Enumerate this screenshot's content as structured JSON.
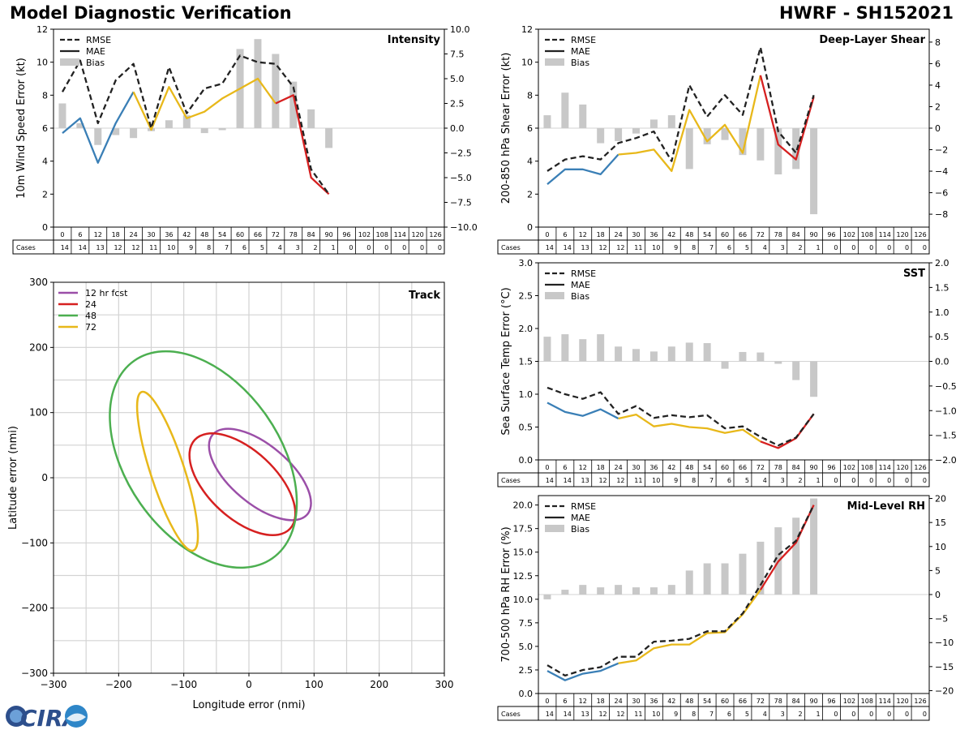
{
  "header": {
    "left_title": "Model Diagnostic Verification",
    "right_title": "HWRF - SH152021"
  },
  "logo": {
    "text": "CIRA"
  },
  "colors": {
    "rmse": "#222222",
    "mae_0_12": "#3a7fb6",
    "mae_12_36": "#e8b81a",
    "mae_36_plus": "#d62020",
    "bias": "#c8c8c8",
    "grid": "#d3d3d3"
  },
  "table": {
    "row_label": "Cases",
    "hours": [
      "0",
      "6",
      "12",
      "18",
      "24",
      "30",
      "36",
      "42",
      "48",
      "54",
      "60",
      "66",
      "72",
      "78",
      "84",
      "90",
      "96",
      "102",
      "108",
      "114",
      "120",
      "126"
    ],
    "cases": [
      "14",
      "14",
      "13",
      "12",
      "12",
      "11",
      "10",
      "9",
      "8",
      "7",
      "6",
      "5",
      "4",
      "3",
      "2",
      "1",
      "0",
      "0",
      "0",
      "0",
      "0",
      "0"
    ]
  },
  "legend": {
    "rmse": "RMSE",
    "mae": "MAE",
    "bias": "Bias"
  },
  "chart_data": [
    {
      "id": "intensity",
      "type": "line",
      "title": "Intensity",
      "ylabel": "10m Wind Speed Error (kt)",
      "ylim": [
        0,
        12
      ],
      "yticks": [
        "0",
        "2",
        "4",
        "6",
        "8",
        "10",
        "12"
      ],
      "y2lim": [
        -10,
        10
      ],
      "y2ticks": [
        "−10.0",
        "−7.5",
        "−5.0",
        "−2.5",
        "0.0",
        "2.5",
        "5.0",
        "7.5",
        "10.0"
      ],
      "rmse": [
        8.2,
        10.1,
        6.3,
        8.9,
        9.9,
        6.0,
        9.7,
        6.9,
        8.4,
        8.7,
        10.4,
        10.0,
        9.9,
        8.5,
        3.5,
        2.0
      ],
      "mae": [
        5.7,
        6.6,
        3.9,
        6.3,
        8.2,
        5.9,
        8.5,
        6.6,
        7.0,
        7.8,
        8.4,
        9.0,
        7.5,
        8.0,
        3.0,
        2.0
      ],
      "bias": [
        2.5,
        0.5,
        -1.7,
        -0.7,
        -1.0,
        -0.3,
        0.8,
        1.3,
        -0.5,
        -0.2,
        8.0,
        9.0,
        7.5,
        4.7,
        1.9,
        -2.0
      ]
    },
    {
      "id": "shear",
      "type": "line",
      "title": "Deep-Layer Shear",
      "ylabel": "200-850 hPa Shear Error (kt)",
      "ylim": [
        0,
        12
      ],
      "yticks": [
        "0",
        "2",
        "4",
        "6",
        "8",
        "10",
        "12"
      ],
      "y2lim": [
        -9.2,
        9.2
      ],
      "y2ticks": [
        "−8",
        "−6",
        "−4",
        "−2",
        "0",
        "2",
        "4",
        "6",
        "8"
      ],
      "rmse": [
        3.4,
        4.1,
        4.3,
        4.1,
        5.1,
        5.4,
        5.8,
        4.0,
        8.6,
        6.7,
        8.0,
        6.8,
        10.9,
        5.8,
        4.5,
        8.0
      ],
      "mae": [
        2.6,
        3.5,
        3.5,
        3.2,
        4.4,
        4.5,
        4.7,
        3.4,
        7.1,
        5.2,
        6.2,
        4.5,
        9.2,
        5.0,
        4.1,
        7.9
      ],
      "bias": [
        1.2,
        3.3,
        2.2,
        -1.4,
        -1.2,
        -0.5,
        0.8,
        1.2,
        -3.8,
        -1.5,
        -1.1,
        -2.5,
        -3.0,
        -4.3,
        -3.8,
        -8.0
      ]
    },
    {
      "id": "sst",
      "type": "line",
      "title": "SST",
      "ylabel": "Sea Surface Temp Error (°C)",
      "ylim": [
        0,
        3
      ],
      "yticks": [
        "0.0",
        "0.5",
        "1.0",
        "1.5",
        "2.0",
        "2.5",
        "3.0"
      ],
      "y2lim": [
        -2,
        2
      ],
      "y2ticks": [
        "−2.0",
        "−1.5",
        "−1.0",
        "−0.5",
        "0.0",
        "0.5",
        "1.0",
        "1.5",
        "2.0"
      ],
      "rmse": [
        1.1,
        1.0,
        0.93,
        1.03,
        0.7,
        0.82,
        0.64,
        0.68,
        0.65,
        0.68,
        0.48,
        0.51,
        0.35,
        0.22,
        0.34,
        0.7
      ],
      "mae": [
        0.87,
        0.73,
        0.67,
        0.77,
        0.63,
        0.69,
        0.51,
        0.55,
        0.5,
        0.48,
        0.41,
        0.46,
        0.28,
        0.18,
        0.33,
        0.7
      ],
      "bias": [
        0.5,
        0.55,
        0.45,
        0.55,
        0.3,
        0.25,
        0.2,
        0.3,
        0.38,
        0.37,
        -0.15,
        0.19,
        0.18,
        -0.05,
        -0.38,
        -0.72
      ]
    },
    {
      "id": "rh",
      "type": "line",
      "title": "Mid-Level RH",
      "ylabel": "700-500 hPa RH Error (%)",
      "ylim": [
        0,
        21
      ],
      "yticks": [
        "0.0",
        "2.5",
        "5.0",
        "7.5",
        "10.0",
        "12.5",
        "15.0",
        "17.5",
        "20.0"
      ],
      "y2lim": [
        -20.6,
        20.6
      ],
      "y2ticks": [
        "−20",
        "−15",
        "−10",
        "−5",
        "0",
        "5",
        "10",
        "15",
        "20"
      ],
      "rmse": [
        3.0,
        1.9,
        2.5,
        2.8,
        3.9,
        3.9,
        5.5,
        5.6,
        5.8,
        6.6,
        6.6,
        8.5,
        11.5,
        14.7,
        16.2,
        20.0
      ],
      "mae": [
        2.4,
        1.4,
        2.1,
        2.4,
        3.2,
        3.5,
        4.8,
        5.2,
        5.2,
        6.4,
        6.5,
        8.4,
        11.0,
        14.0,
        16.0,
        20.0
      ],
      "bias": [
        -1.0,
        1.0,
        2.0,
        1.5,
        2.0,
        1.5,
        1.5,
        2.0,
        5.0,
        6.5,
        6.5,
        8.5,
        11.0,
        14.0,
        16.0,
        20.0
      ]
    },
    {
      "id": "track",
      "type": "scatter",
      "title": "Track",
      "xlabel": "Longitude error (nmi)",
      "ylabel": "Latitude error (nmi)",
      "xlim": [
        -300,
        300
      ],
      "ylim": [
        -300,
        300
      ],
      "xticks": [
        "−300",
        "−200",
        "−100",
        "0",
        "100",
        "200",
        "300"
      ],
      "yticks": [
        "−300",
        "−200",
        "−100",
        "0",
        "100",
        "200",
        "300"
      ],
      "legend": [
        "12 hr fcst",
        "24",
        "48",
        "72"
      ],
      "ellipses": [
        {
          "label": "12 hr fcst",
          "cx": 17,
          "cy": 5,
          "a": 95,
          "b": 45,
          "angle": -40,
          "color": "#9b4fa8"
        },
        {
          "label": "24",
          "cx": -10,
          "cy": -10,
          "a": 100,
          "b": 52,
          "angle": -43,
          "color": "#d62020"
        },
        {
          "label": "48",
          "cx": -70,
          "cy": 28,
          "a": 185,
          "b": 118,
          "angle": -55,
          "color": "#4caf50"
        },
        {
          "label": "72",
          "cx": -125,
          "cy": 10,
          "a": 128,
          "b": 26,
          "angle": -72,
          "color": "#e8b81a"
        }
      ]
    }
  ]
}
